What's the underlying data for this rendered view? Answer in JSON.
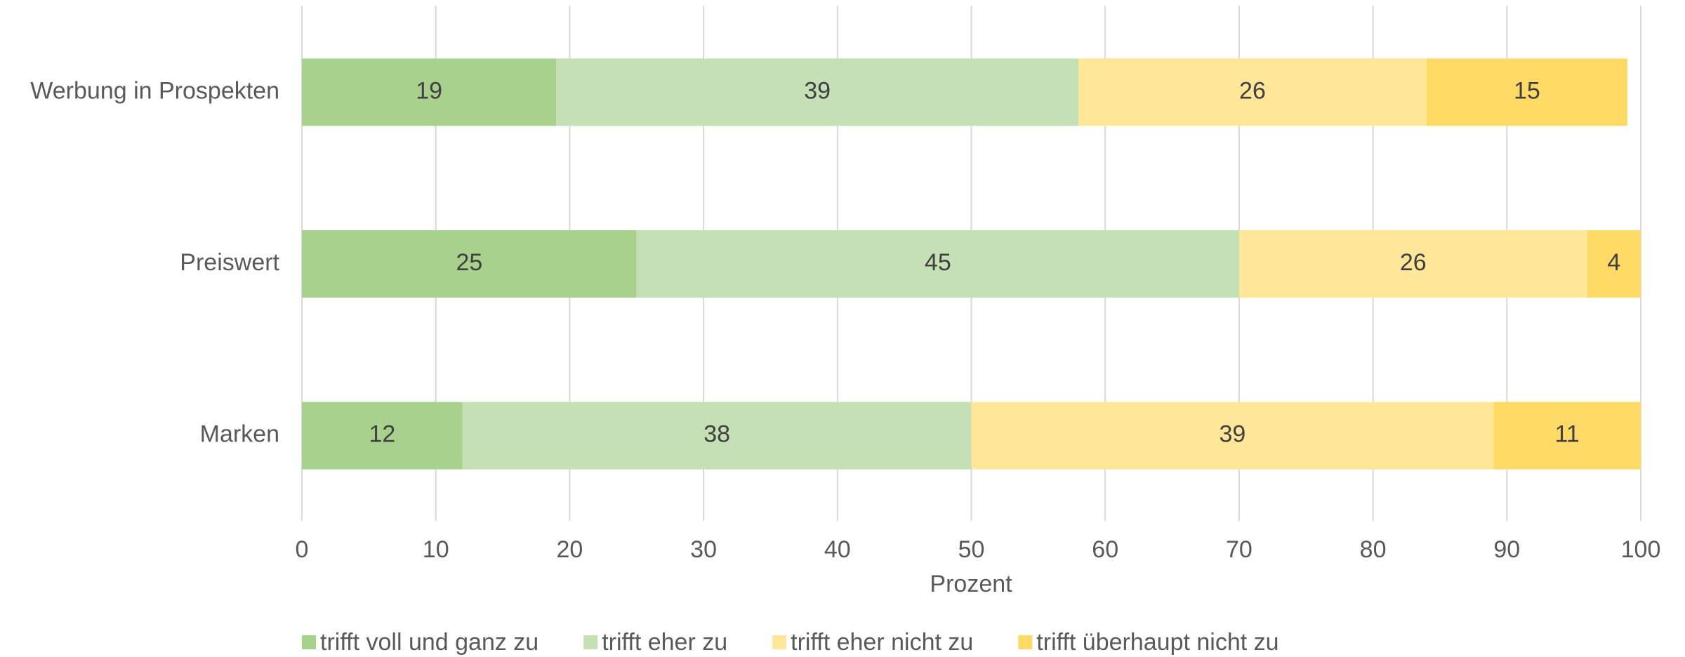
{
  "chart_data": {
    "type": "stacked-bar-horizontal",
    "categories": [
      "Werbung in Prospekten",
      "Preiswert",
      "Marken"
    ],
    "series": [
      {
        "name": "trifft voll und ganz zu",
        "color": "#a9d18e",
        "values": [
          19,
          25,
          12
        ]
      },
      {
        "name": "trifft eher zu",
        "color": "#c5e0b4",
        "values": [
          39,
          45,
          38
        ]
      },
      {
        "name": "trifft eher nicht zu",
        "color": "#ffe699",
        "values": [
          26,
          26,
          39
        ]
      },
      {
        "name": "trifft überhaupt nicht zu",
        "color": "#ffd966",
        "values": [
          15,
          4,
          11
        ]
      }
    ],
    "xlabel": "Prozent",
    "xlim": [
      0,
      100
    ],
    "xticks": [
      0,
      10,
      20,
      30,
      40,
      50,
      60,
      70,
      80,
      90,
      100
    ],
    "grid": true,
    "legend": "bottom"
  }
}
